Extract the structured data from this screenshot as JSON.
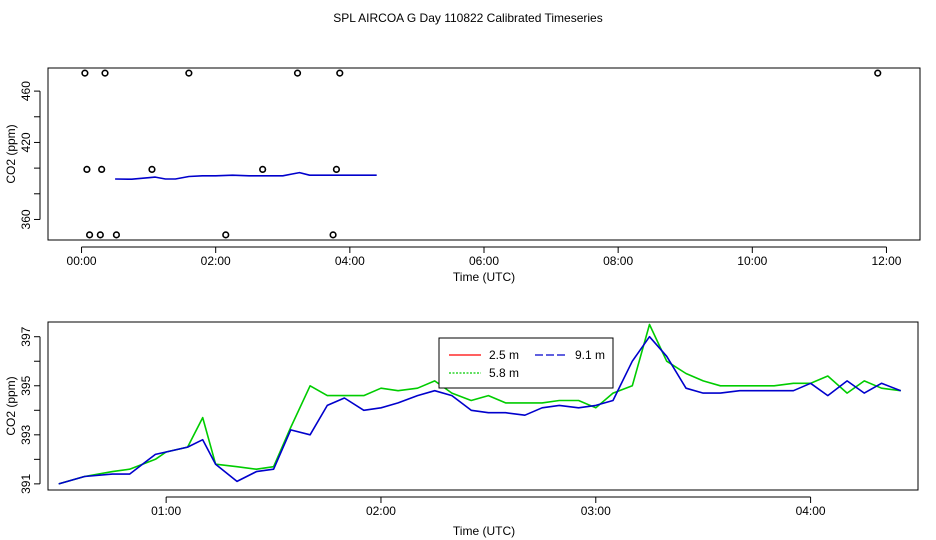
{
  "figure_title": "SPL AIRCOA G  Day 110822  Calibrated Timeseries",
  "chart_data": [
    {
      "type": "line",
      "panel": "overview",
      "xlabel": "Time (UTC)",
      "ylabel": "CO2 (ppm)",
      "xlim": [
        -0.5,
        12.5
      ],
      "ylim": [
        344,
        478
      ],
      "x_ticks": [
        0,
        2,
        4,
        6,
        8,
        10,
        12
      ],
      "x_tick_labels": [
        "00:00",
        "02:00",
        "04:00",
        "06:00",
        "08:00",
        "10:00",
        "12:00"
      ],
      "y_ticks": [
        360,
        380,
        400,
        420,
        440,
        460
      ],
      "y_tick_labels": [
        "360",
        "",
        "",
        "420",
        "",
        "460"
      ],
      "series": [
        {
          "name": "CO2",
          "color": "#0000cc",
          "x": [
            0.5,
            0.75,
            1.0,
            1.1,
            1.25,
            1.4,
            1.6,
            1.8,
            2.0,
            2.25,
            2.5,
            2.75,
            3.0,
            3.15,
            3.25,
            3.4,
            3.75,
            4.0,
            4.4
          ],
          "y": [
            391.5,
            391.4,
            392.5,
            393.0,
            391.5,
            391.5,
            393.5,
            394.0,
            394.0,
            394.5,
            394.0,
            394.0,
            394.0,
            395.5,
            396.5,
            394.5,
            394.5,
            394.5,
            394.5
          ]
        }
      ],
      "markers": {
        "style": "open-circle",
        "x": [
          0.05,
          0.35,
          1.6,
          3.22,
          3.85,
          11.87,
          0.08,
          0.3,
          1.05,
          2.7,
          3.8,
          0.12,
          0.28,
          0.52,
          2.15,
          3.75
        ],
        "y": [
          474,
          474,
          474,
          474,
          474,
          474,
          399,
          399,
          399,
          399,
          399,
          348,
          348,
          348,
          348,
          348
        ]
      }
    },
    {
      "type": "line",
      "panel": "detail",
      "xlabel": "Time (UTC)",
      "ylabel": "CO2 (ppm)",
      "xlim": [
        0.45,
        4.5
      ],
      "ylim": [
        390.75,
        397.6
      ],
      "x_ticks": [
        1,
        2,
        3,
        4
      ],
      "x_tick_labels": [
        "01:00",
        "02:00",
        "03:00",
        "04:00"
      ],
      "y_ticks": [
        391,
        392,
        393,
        394,
        395,
        396,
        397
      ],
      "y_tick_labels": [
        "391",
        "",
        "393",
        "",
        "395",
        "",
        "397"
      ],
      "legend_position": "top-center",
      "series": [
        {
          "name": "2.5 m",
          "color": "#ff0000",
          "x": [],
          "y": []
        },
        {
          "name": "5.8 m",
          "color": "#00cc00",
          "x": [
            0.5,
            0.62,
            0.75,
            0.83,
            0.92,
            0.95,
            1.0,
            1.1,
            1.17,
            1.23,
            1.33,
            1.42,
            1.5,
            1.58,
            1.67,
            1.75,
            1.83,
            1.92,
            2.0,
            2.08,
            2.17,
            2.25,
            2.33,
            2.42,
            2.5,
            2.58,
            2.67,
            2.75,
            2.83,
            2.92,
            3.0,
            3.08,
            3.17,
            3.25,
            3.33,
            3.42,
            3.5,
            3.58,
            3.67,
            3.75,
            3.83,
            3.92,
            4.0,
            4.08,
            4.17,
            4.25,
            4.33,
            4.42
          ],
          "y": [
            391.0,
            391.3,
            391.5,
            391.6,
            391.9,
            392.0,
            392.3,
            392.5,
            393.7,
            391.8,
            391.7,
            391.6,
            391.7,
            393.3,
            395.0,
            394.6,
            394.6,
            394.6,
            394.9,
            394.8,
            394.9,
            395.2,
            394.7,
            394.4,
            394.6,
            394.3,
            394.3,
            394.3,
            394.4,
            394.4,
            394.1,
            394.7,
            395.0,
            397.5,
            396.0,
            395.5,
            395.2,
            395.0,
            395.0,
            395.0,
            395.0,
            395.1,
            395.1,
            395.4,
            394.7,
            395.2,
            394.9,
            394.8
          ]
        },
        {
          "name": "9.1 m",
          "color": "#0000cc",
          "x": [
            0.5,
            0.62,
            0.75,
            0.83,
            0.92,
            0.95,
            1.0,
            1.1,
            1.17,
            1.23,
            1.33,
            1.42,
            1.5,
            1.58,
            1.67,
            1.75,
            1.83,
            1.92,
            2.0,
            2.08,
            2.17,
            2.25,
            2.33,
            2.42,
            2.5,
            2.58,
            2.67,
            2.75,
            2.83,
            2.92,
            3.0,
            3.08,
            3.17,
            3.25,
            3.33,
            3.42,
            3.5,
            3.58,
            3.67,
            3.75,
            3.83,
            3.92,
            4.0,
            4.08,
            4.17,
            4.25,
            4.33,
            4.42
          ],
          "y": [
            391.0,
            391.3,
            391.4,
            391.4,
            392.0,
            392.2,
            392.3,
            392.5,
            392.8,
            391.8,
            391.1,
            391.5,
            391.6,
            393.2,
            393.0,
            394.2,
            394.5,
            394.0,
            394.1,
            394.3,
            394.6,
            394.8,
            394.6,
            394.0,
            393.9,
            393.9,
            393.8,
            394.1,
            394.2,
            394.1,
            394.2,
            394.4,
            396.0,
            397.0,
            396.2,
            394.9,
            394.7,
            394.7,
            394.8,
            394.8,
            394.8,
            394.8,
            395.1,
            394.6,
            395.2,
            394.7,
            395.1,
            394.8
          ]
        }
      ]
    }
  ]
}
